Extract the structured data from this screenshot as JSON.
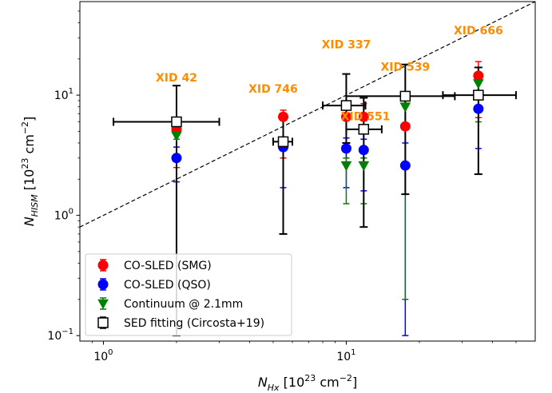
{
  "chart_data": {
    "type": "scatter",
    "title": "",
    "xlabel": {
      "base": "N",
      "sub": "Hx",
      "rest": " [10",
      "sup": "23",
      "unit_rest": " cm",
      "unit_sup": "−2",
      "close": "]"
    },
    "ylabel": {
      "base": "N",
      "sub": "HISM",
      "rest": " [10",
      "sup": "23",
      "unit_rest": " cm",
      "unit_sup": "−2",
      "close": "]"
    },
    "x_scale": "log",
    "y_scale": "log",
    "xlim": [
      0.8,
      60
    ],
    "ylim": [
      0.09,
      60
    ],
    "x_ticks": [
      {
        "value": 1,
        "base": "10",
        "exp": "0"
      },
      {
        "value": 10,
        "base": "10",
        "exp": "1"
      }
    ],
    "y_ticks": [
      {
        "value": 0.1,
        "base": "10",
        "exp": "−1"
      },
      {
        "value": 1,
        "base": "10",
        "exp": "0"
      },
      {
        "value": 10,
        "base": "10",
        "exp": "1"
      }
    ],
    "grid": false,
    "legend_position": "lower-left",
    "reference_line": {
      "type": "one-to-one",
      "style": "dashed",
      "color": "#000000"
    },
    "series": [
      {
        "name": "CO-SLED (SMG)",
        "color": "#ff0000",
        "marker": "circle",
        "points": [
          {
            "x": 2.0,
            "y": 5.2,
            "ylo": 2.5,
            "yhi": 6.4
          },
          {
            "x": 5.5,
            "y": 6.6,
            "ylo": 3.0,
            "yhi": 7.5
          },
          {
            "x": 10.0,
            "y": 6.6,
            "ylo": 3.0,
            "yhi": 8.5
          },
          {
            "x": 11.8,
            "y": 6.6,
            "ylo": 3.0,
            "yhi": 8.5
          },
          {
            "x": 17.5,
            "y": 5.5,
            "ylo": 2.5,
            "yhi": 8.0
          },
          {
            "x": 35.0,
            "y": 14.5,
            "ylo": 6.5,
            "yhi": 19.0
          }
        ]
      },
      {
        "name": "CO-SLED (QSO)",
        "color": "#0000ff",
        "marker": "circle",
        "points": [
          {
            "x": 2.0,
            "y": 3.0,
            "ylo": 1.9,
            "yhi": 3.7
          },
          {
            "x": 5.5,
            "y": 3.7,
            "ylo": 1.7,
            "yhi": 4.2
          },
          {
            "x": 10.0,
            "y": 3.6,
            "ylo": 1.7,
            "yhi": 4.4
          },
          {
            "x": 11.8,
            "y": 3.5,
            "ylo": 1.6,
            "yhi": 4.3
          },
          {
            "x": 17.5,
            "y": 2.6,
            "ylo": 0.1,
            "yhi": 4.0
          },
          {
            "x": 35.0,
            "y": 7.7,
            "ylo": 3.6,
            "yhi": 9.5
          }
        ]
      },
      {
        "name": "Continuum @ 2.1mm",
        "color": "#008000",
        "marker": "triangle-down",
        "points": [
          {
            "x": 2.0,
            "y": 4.6,
            "ylo": 4.3,
            "yhi": 5.2
          },
          {
            "x": 10.0,
            "y": 2.6,
            "ylo": 1.25,
            "yhi": 3.0
          },
          {
            "x": 11.8,
            "y": 2.6,
            "ylo": 1.25,
            "yhi": 3.0
          },
          {
            "x": 17.5,
            "y": 8.0,
            "ylo": 0.2,
            "yhi": 9.0
          },
          {
            "x": 35.0,
            "y": 12.5,
            "ylo": 6.0,
            "yhi": 14.0
          }
        ]
      },
      {
        "name": "SED fitting (Circosta+19)",
        "color": "#000000",
        "marker": "square-open",
        "points": [
          {
            "x": 2.0,
            "y": 6.0,
            "xlo": 1.1,
            "xhi": 3.0,
            "ylo": 0.1,
            "yhi": 12.0
          },
          {
            "x": 5.5,
            "y": 4.1,
            "xlo": 5.0,
            "xhi": 6.0,
            "ylo": 0.7,
            "yhi": 7.0
          },
          {
            "x": 10.0,
            "y": 8.2,
            "xlo": 8.0,
            "xhi": 12.0,
            "ylo": 4.0,
            "yhi": 15.0
          },
          {
            "x": 11.8,
            "y": 5.2,
            "xlo": 10.0,
            "xhi": 14.0,
            "ylo": 0.8,
            "yhi": 9.5
          },
          {
            "x": 17.5,
            "y": 9.8,
            "xlo": 10.0,
            "xhi": 28.0,
            "ylo": 1.5,
            "yhi": 18.0
          },
          {
            "x": 35.0,
            "y": 10.0,
            "xlo": 25.0,
            "xhi": 50.0,
            "ylo": 2.2,
            "yhi": 17.0
          }
        ]
      }
    ],
    "annotations": [
      {
        "text": "XID 42",
        "x": 2.0,
        "y": 13.0,
        "color": "#ff8c00"
      },
      {
        "text": "XID 746",
        "x": 5.0,
        "y": 10.5,
        "color": "#ff8c00"
      },
      {
        "text": "XID 337",
        "x": 10.0,
        "y": 24.5,
        "color": "#ff8c00"
      },
      {
        "text": "XID 539",
        "x": 17.5,
        "y": 16.0,
        "color": "#ff8c00"
      },
      {
        "text": "XID 551",
        "x": 12.0,
        "y": 6.2,
        "color": "#ff8c00"
      },
      {
        "text": "XID 666",
        "x": 35.0,
        "y": 32.0,
        "color": "#ff8c00"
      }
    ]
  }
}
